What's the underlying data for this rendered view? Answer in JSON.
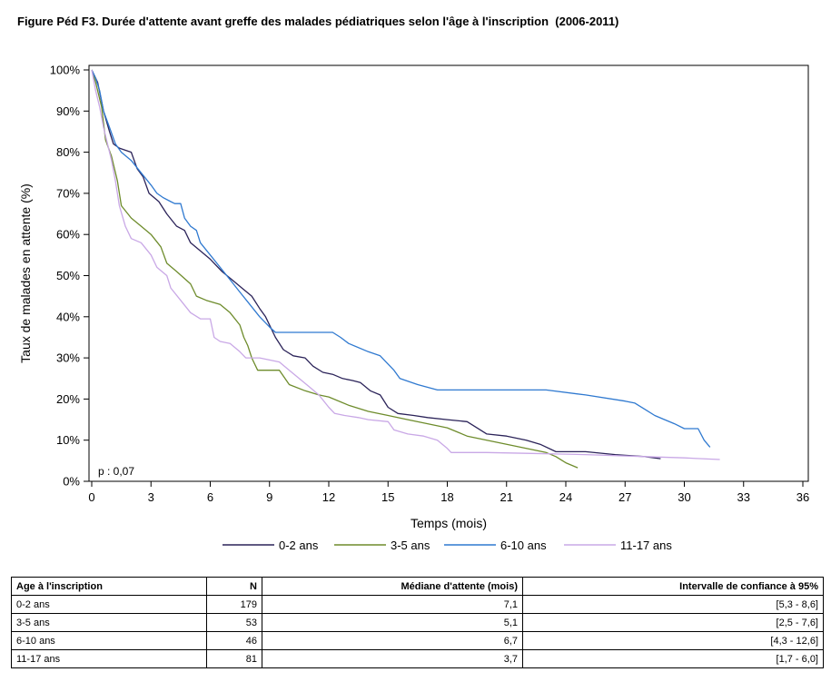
{
  "title": "Figure Péd F3. Durée d'attente avant greffe des malades pédiatriques selon l'âge à l'inscription  (2006-2011)",
  "chart_data": {
    "type": "line",
    "xlabel": "Temps (mois)",
    "ylabel": "Taux de malades en attente (%)",
    "xlim": [
      0,
      36
    ],
    "ylim": [
      0,
      100
    ],
    "xticks": [
      0,
      3,
      6,
      9,
      12,
      15,
      18,
      21,
      24,
      27,
      30,
      33,
      36
    ],
    "yticks": [
      0,
      10,
      20,
      30,
      40,
      50,
      60,
      70,
      80,
      90,
      100
    ],
    "ytick_labels": [
      "0%",
      "10%",
      "20%",
      "30%",
      "40%",
      "50%",
      "60%",
      "70%",
      "80%",
      "90%",
      "100%"
    ],
    "annotation": "p : 0,07",
    "legend_position": "bottom",
    "grid": false,
    "series": [
      {
        "name": "0-2 ans",
        "color": "#2b2359",
        "points": [
          [
            0,
            100
          ],
          [
            0.3,
            97
          ],
          [
            0.6,
            90
          ],
          [
            0.9,
            85
          ],
          [
            1.1,
            82
          ],
          [
            1.4,
            81
          ],
          [
            2.0,
            80
          ],
          [
            2.3,
            76
          ],
          [
            2.6,
            74
          ],
          [
            2.9,
            70
          ],
          [
            3.4,
            68
          ],
          [
            3.8,
            65
          ],
          [
            4.3,
            62
          ],
          [
            4.7,
            61
          ],
          [
            5.0,
            58
          ],
          [
            5.5,
            56
          ],
          [
            6.0,
            54
          ],
          [
            6.6,
            51
          ],
          [
            7.1,
            49
          ],
          [
            7.6,
            47
          ],
          [
            8.1,
            45
          ],
          [
            8.5,
            42
          ],
          [
            8.8,
            40
          ],
          [
            9.3,
            35
          ],
          [
            9.7,
            32
          ],
          [
            10.2,
            30.5
          ],
          [
            10.8,
            30
          ],
          [
            11.2,
            28
          ],
          [
            11.7,
            26.5
          ],
          [
            12.2,
            26
          ],
          [
            12.7,
            25
          ],
          [
            13.2,
            24.5
          ],
          [
            13.6,
            24
          ],
          [
            14.1,
            22
          ],
          [
            14.6,
            21
          ],
          [
            15.0,
            18
          ],
          [
            15.5,
            16.5
          ],
          [
            16.3,
            16
          ],
          [
            17.0,
            15.5
          ],
          [
            18.0,
            15
          ],
          [
            19.0,
            14.5
          ],
          [
            19.5,
            13
          ],
          [
            20.0,
            11.5
          ],
          [
            21.0,
            11
          ],
          [
            22.0,
            10
          ],
          [
            22.7,
            9
          ],
          [
            23.5,
            7.2
          ],
          [
            25.0,
            7.2
          ],
          [
            26.5,
            6.5
          ],
          [
            28.0,
            6
          ],
          [
            28.8,
            5.5
          ]
        ]
      },
      {
        "name": "3-5 ans",
        "color": "#6e8c2c",
        "points": [
          [
            0,
            100
          ],
          [
            0.2,
            97
          ],
          [
            0.5,
            91
          ],
          [
            0.7,
            83
          ],
          [
            1.0,
            79
          ],
          [
            1.3,
            73
          ],
          [
            1.5,
            67
          ],
          [
            2.0,
            64
          ],
          [
            2.5,
            62
          ],
          [
            3.0,
            60
          ],
          [
            3.5,
            57
          ],
          [
            3.8,
            53
          ],
          [
            4.3,
            51
          ],
          [
            5.0,
            48
          ],
          [
            5.3,
            45
          ],
          [
            5.8,
            44
          ],
          [
            6.5,
            43
          ],
          [
            7.0,
            41
          ],
          [
            7.5,
            38
          ],
          [
            7.7,
            35
          ],
          [
            7.9,
            33
          ],
          [
            8.1,
            30
          ],
          [
            8.4,
            27
          ],
          [
            9.5,
            27
          ],
          [
            10.0,
            23.5
          ],
          [
            10.8,
            22
          ],
          [
            11.5,
            21
          ],
          [
            12.0,
            20.5
          ],
          [
            13.0,
            18.5
          ],
          [
            14.0,
            17
          ],
          [
            15.0,
            16
          ],
          [
            16.0,
            15
          ],
          [
            17.0,
            14
          ],
          [
            18.0,
            13
          ],
          [
            18.5,
            12
          ],
          [
            19.0,
            11
          ],
          [
            20.0,
            10
          ],
          [
            21.0,
            9
          ],
          [
            22.0,
            8
          ],
          [
            23.0,
            7
          ],
          [
            23.5,
            6
          ],
          [
            24.0,
            4.5
          ],
          [
            24.6,
            3.3
          ]
        ]
      },
      {
        "name": "6-10 ans",
        "color": "#2f79d0",
        "points": [
          [
            0,
            100
          ],
          [
            0.2,
            98
          ],
          [
            0.4,
            95
          ],
          [
            0.6,
            90
          ],
          [
            0.9,
            86
          ],
          [
            1.2,
            82
          ],
          [
            1.5,
            80
          ],
          [
            2.0,
            78
          ],
          [
            2.5,
            75
          ],
          [
            3.0,
            72
          ],
          [
            3.3,
            70
          ],
          [
            3.6,
            69
          ],
          [
            4.0,
            68
          ],
          [
            4.2,
            67.5
          ],
          [
            4.5,
            67.5
          ],
          [
            4.7,
            64
          ],
          [
            5.0,
            62
          ],
          [
            5.3,
            61
          ],
          [
            5.5,
            58
          ],
          [
            6.0,
            55
          ],
          [
            6.5,
            52
          ],
          [
            7.0,
            49
          ],
          [
            7.5,
            46
          ],
          [
            8.0,
            43
          ],
          [
            8.5,
            40
          ],
          [
            9.0,
            37.5
          ],
          [
            9.3,
            36.2
          ],
          [
            12.2,
            36.2
          ],
          [
            12.6,
            35
          ],
          [
            13.0,
            33.5
          ],
          [
            14.0,
            31.5
          ],
          [
            14.6,
            30.5
          ],
          [
            15.0,
            28.5
          ],
          [
            15.3,
            27
          ],
          [
            15.6,
            25
          ],
          [
            16.5,
            23.5
          ],
          [
            17.5,
            22.2
          ],
          [
            23.0,
            22.2
          ],
          [
            25.0,
            21
          ],
          [
            27.0,
            19.5
          ],
          [
            27.5,
            19
          ],
          [
            28.0,
            17.5
          ],
          [
            28.5,
            16
          ],
          [
            29.0,
            15
          ],
          [
            29.5,
            14
          ],
          [
            30.0,
            12.8
          ],
          [
            30.7,
            12.8
          ],
          [
            31.0,
            10
          ],
          [
            31.3,
            8.3
          ]
        ]
      },
      {
        "name": "11-17 ans",
        "color": "#c9a8e6",
        "points": [
          [
            0,
            100
          ],
          [
            0.2,
            95
          ],
          [
            0.4,
            91
          ],
          [
            0.6,
            86
          ],
          [
            0.8,
            82
          ],
          [
            1.0,
            78
          ],
          [
            1.2,
            73
          ],
          [
            1.4,
            67
          ],
          [
            1.7,
            62
          ],
          [
            2.0,
            59
          ],
          [
            2.5,
            58
          ],
          [
            3.0,
            55
          ],
          [
            3.3,
            52
          ],
          [
            3.8,
            50
          ],
          [
            4.0,
            47
          ],
          [
            4.5,
            44
          ],
          [
            5.0,
            41
          ],
          [
            5.5,
            39.5
          ],
          [
            6.0,
            39.5
          ],
          [
            6.2,
            35
          ],
          [
            6.5,
            34
          ],
          [
            7.0,
            33.5
          ],
          [
            7.5,
            31.5
          ],
          [
            7.8,
            30
          ],
          [
            8.5,
            30
          ],
          [
            9.5,
            29
          ],
          [
            10.0,
            27
          ],
          [
            10.5,
            25
          ],
          [
            11.0,
            23
          ],
          [
            11.5,
            21
          ],
          [
            12.0,
            18
          ],
          [
            12.3,
            16.5
          ],
          [
            12.8,
            16
          ],
          [
            13.5,
            15.5
          ],
          [
            14.0,
            15
          ],
          [
            15.0,
            14.5
          ],
          [
            15.3,
            12.5
          ],
          [
            16.0,
            11.5
          ],
          [
            16.8,
            11
          ],
          [
            17.5,
            10
          ],
          [
            18.0,
            8
          ],
          [
            18.2,
            7
          ],
          [
            20.0,
            7
          ],
          [
            22.0,
            6.8
          ],
          [
            25.0,
            6.5
          ],
          [
            28.0,
            6
          ],
          [
            30.0,
            5.7
          ],
          [
            31.8,
            5.3
          ]
        ]
      }
    ]
  },
  "table": {
    "headers": [
      "Age à l'inscription",
      "N",
      "Médiane d'attente (mois)",
      "Intervalle de confiance à 95%"
    ],
    "rows": [
      [
        "0-2 ans",
        "179",
        "7,1",
        "[5,3 - 8,6]"
      ],
      [
        "3-5 ans",
        "53",
        "5,1",
        "[2,5 - 7,6]"
      ],
      [
        "6-10 ans",
        "46",
        "6,7",
        "[4,3 - 12,6]"
      ],
      [
        "11-17 ans",
        "81",
        "3,7",
        "[1,7 - 6,0]"
      ]
    ]
  }
}
